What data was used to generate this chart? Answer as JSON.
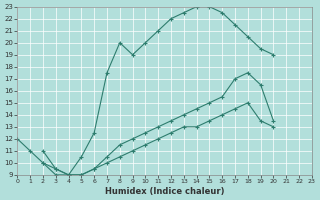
{
  "title": "",
  "xlabel": "Humidex (Indice chaleur)",
  "bg_color": "#b2dfdb",
  "grid_color": "#ffffff",
  "line_color": "#2e7d6e",
  "xlim": [
    0,
    23
  ],
  "ylim": [
    9,
    23
  ],
  "xticks": [
    0,
    1,
    2,
    3,
    4,
    5,
    6,
    7,
    8,
    9,
    10,
    11,
    12,
    13,
    14,
    15,
    16,
    17,
    18,
    19,
    20,
    21,
    22,
    23
  ],
  "yticks": [
    9,
    10,
    11,
    12,
    13,
    14,
    15,
    16,
    17,
    18,
    19,
    20,
    21,
    22,
    23
  ],
  "line1_x": [
    0,
    1,
    2,
    3,
    4,
    5,
    6,
    7,
    8,
    9,
    10,
    11,
    12,
    13,
    14,
    15,
    16,
    17,
    18,
    19,
    20
  ],
  "line1_y": [
    12,
    11,
    10,
    9,
    9,
    10.5,
    12.5,
    17.5,
    20,
    19,
    20,
    21,
    22,
    22.5,
    23,
    23,
    22.5,
    21.5,
    20.5,
    19.5,
    19
  ],
  "line2_x": [
    2,
    3,
    4,
    5,
    6,
    7,
    8,
    9,
    10,
    11,
    12,
    13,
    14,
    15,
    16,
    17,
    18,
    19,
    20,
    21,
    22
  ],
  "line2_y": [
    11,
    9.5,
    9,
    9,
    9.5,
    10.5,
    11.5,
    12,
    12.5,
    13,
    13.5,
    14,
    14.5,
    15,
    15.5,
    17,
    17.5,
    16.5,
    13.5,
    null,
    null
  ],
  "line3_x": [
    2,
    3,
    4,
    5,
    6,
    7,
    8,
    9,
    10,
    11,
    12,
    13,
    14,
    15,
    16,
    17,
    18,
    19,
    20,
    21,
    22
  ],
  "line3_y": [
    10,
    9.5,
    9,
    9,
    9.5,
    10,
    10.5,
    11,
    11.5,
    12,
    12.5,
    13,
    13,
    13.5,
    14,
    14.5,
    15,
    13.5,
    13,
    null,
    null
  ]
}
